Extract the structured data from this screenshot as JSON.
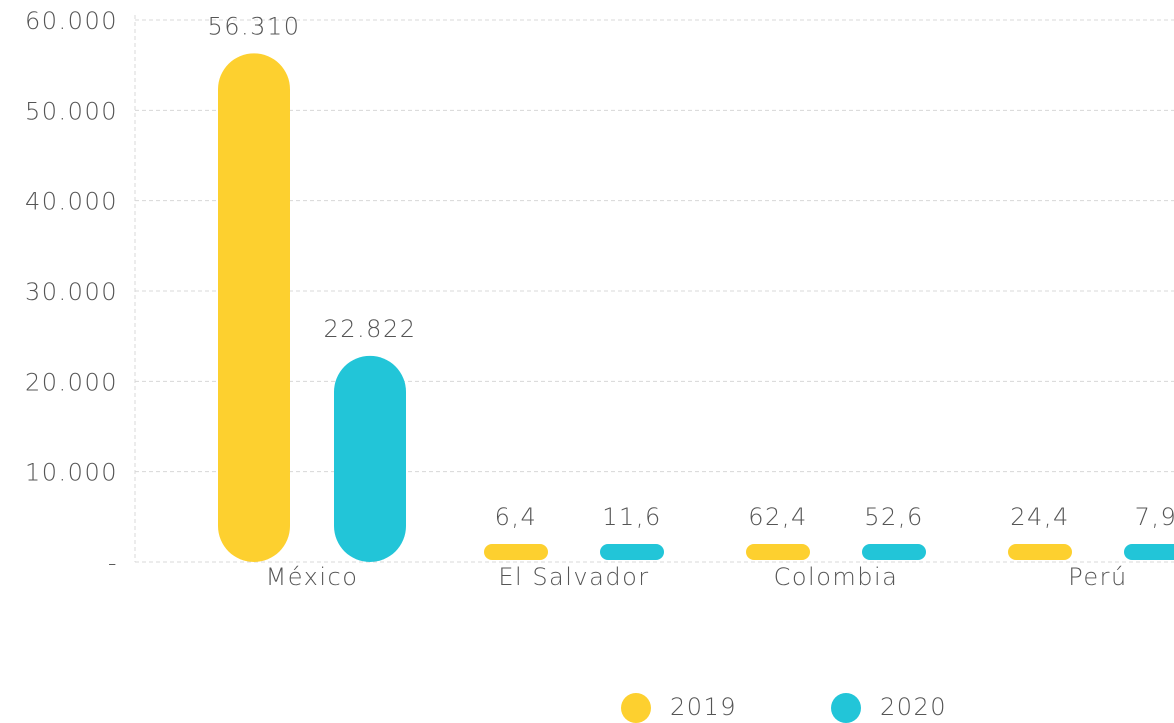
{
  "chart_data": {
    "type": "bar",
    "categories": [
      "México",
      "El Salvador",
      "Colombia",
      "Perú"
    ],
    "series": [
      {
        "name": "2019",
        "color": "#fdd02f",
        "values": [
          56310,
          6.4,
          62.4,
          24.4
        ],
        "value_labels": [
          "56.310",
          "6,4",
          "62,4",
          "24,4"
        ]
      },
      {
        "name": "2020",
        "color": "#22c5d8",
        "values": [
          22822,
          11.6,
          52.6,
          7.9
        ],
        "value_labels": [
          "22.822",
          "11,6",
          "52,6",
          "7,9"
        ]
      }
    ],
    "ylim": [
      0,
      60000
    ],
    "yticks": [
      {
        "value": 0,
        "label": "-"
      },
      {
        "value": 10000,
        "label": "10.000"
      },
      {
        "value": 20000,
        "label": "20.000"
      },
      {
        "value": 30000,
        "label": "30.000"
      },
      {
        "value": 40000,
        "label": "40.000"
      },
      {
        "value": 50000,
        "label": "50.000"
      },
      {
        "value": 60000,
        "label": "60.000"
      }
    ],
    "grid": true,
    "legend": "bottom"
  }
}
